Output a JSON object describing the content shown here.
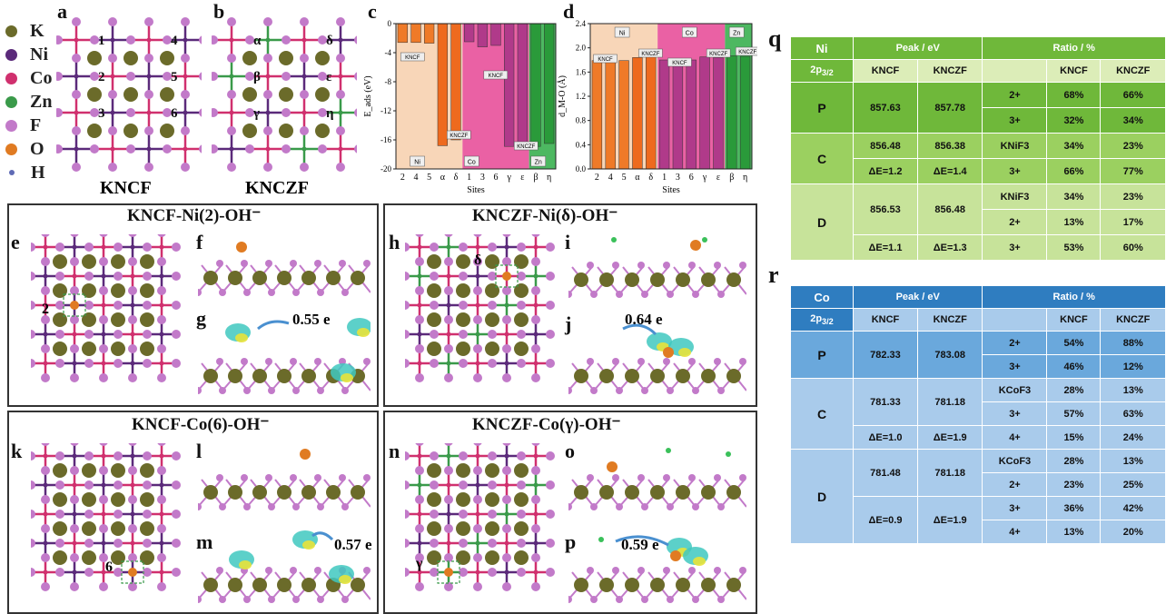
{
  "legend": [
    {
      "label": "K",
      "color": "#6b6b2a"
    },
    {
      "label": "Ni",
      "color": "#5b2a7a"
    },
    {
      "label": "Co",
      "color": "#d0306e"
    },
    {
      "label": "Zn",
      "color": "#3a9a4a"
    },
    {
      "label": "F",
      "color": "#c27ac9"
    },
    {
      "label": "O",
      "color": "#e07b22"
    },
    {
      "label": "H",
      "color": "#5f6bb5"
    }
  ],
  "panel_a": {
    "letter": "a",
    "name": "KNCF",
    "sites": [
      "1",
      "2",
      "3",
      "4",
      "5",
      "6"
    ]
  },
  "panel_b": {
    "letter": "b",
    "name": "KNCZF",
    "sites": [
      "α",
      "β",
      "γ",
      "δ",
      "ε",
      "η"
    ]
  },
  "panel_c": {
    "letter": "c",
    "chart_data": {
      "type": "bar",
      "ylabel": "E_ads (eV)",
      "xlabel": "Sites",
      "ylim": [
        -20,
        0
      ],
      "yticks": [
        "0",
        "-4",
        "-8",
        "-12",
        "-16",
        "-20"
      ],
      "categories": [
        "2",
        "4",
        "5",
        "α",
        "δ",
        "1",
        "3",
        "6",
        "γ",
        "ε",
        "β",
        "η"
      ],
      "values": [
        -2.6,
        -2.6,
        -2.7,
        -16.8,
        -16.0,
        -2.5,
        -3.2,
        -3.0,
        -16.9,
        -16.6,
        -16.9,
        -16.5
      ],
      "region_labels": [
        "Ni",
        "Co",
        "Zn"
      ],
      "tags": [
        "KNCF",
        "KNCZF",
        "KNCF",
        "KNCZF"
      ]
    }
  },
  "panel_d": {
    "letter": "d",
    "chart_data": {
      "type": "bar",
      "ylabel": "d_M-O (Å)",
      "xlabel": "Sites",
      "ylim": [
        0,
        2.4
      ],
      "yticks": [
        "2.4",
        "2.0",
        "1.6",
        "1.2",
        "0.8",
        "0.4",
        "0.0"
      ],
      "categories": [
        "2",
        "4",
        "5",
        "α",
        "δ",
        "1",
        "3",
        "6",
        "γ",
        "ε",
        "β",
        "η"
      ],
      "values": [
        1.79,
        1.79,
        1.79,
        1.84,
        1.88,
        1.8,
        1.8,
        1.8,
        1.85,
        1.84,
        1.87,
        1.86
      ],
      "region_labels": [
        "Ni",
        "Co",
        "Zn"
      ],
      "tags": [
        "KNCF",
        "KNCZF",
        "KNCF",
        "KNCZF",
        "KNCZF"
      ]
    }
  },
  "titles": {
    "e": "KNCF-Ni(2)-OH⁻",
    "h": "KNCZF-Ni(δ)-OH⁻",
    "k": "KNCF-Co(6)-OH⁻",
    "n": "KNCZF-Co(γ)-OH⁻"
  },
  "letters": {
    "e": "e",
    "f": "f",
    "g": "g",
    "h": "h",
    "i": "i",
    "j": "j",
    "k": "k",
    "l": "l",
    "m": "m",
    "n": "n",
    "o": "o",
    "p": "p",
    "q": "q",
    "r": "r"
  },
  "site_marks": {
    "e": "2",
    "h": "δ",
    "k": "6",
    "n": "γ"
  },
  "charge": {
    "g": "0.55 e",
    "j": "0.64 e",
    "m": "0.57 e",
    "p": "0.59 e"
  },
  "table_q": {
    "element": "Ni",
    "orbital": "2p3/2",
    "peak_header": "Peak / eV",
    "ratio_header": "Ratio / %",
    "sub": [
      "KNCF",
      "KNCZF",
      "KNCF",
      "KNCZF"
    ],
    "rows": [
      {
        "g": "P",
        "k1": "857.63",
        "k2": "857.78",
        "state": "2+",
        "r1": "68%",
        "r2": "66%"
      },
      {
        "g": "",
        "k1": "",
        "k2": "",
        "state": "3+",
        "r1": "32%",
        "r2": "34%"
      },
      {
        "g": "C",
        "k1": "856.48",
        "k2": "856.38",
        "state": "KNiF3",
        "r1": "34%",
        "r2": "23%"
      },
      {
        "g": "",
        "k1": "ΔE=1.2",
        "k2": "ΔE=1.4",
        "state": "3+",
        "r1": "66%",
        "r2": "77%"
      },
      {
        "g": "D",
        "k1": "856.53",
        "k2": "856.48",
        "state": "KNiF3",
        "r1": "34%",
        "r2": "23%"
      },
      {
        "g": "",
        "k1": "",
        "k2": "",
        "state": "2+",
        "r1": "13%",
        "r2": "17%"
      },
      {
        "g": "",
        "k1": "ΔE=1.1",
        "k2": "ΔE=1.3",
        "state": "3+",
        "r1": "53%",
        "r2": "60%"
      }
    ]
  },
  "table_r": {
    "element": "Co",
    "orbital": "2p3/2",
    "peak_header": "Peak / eV",
    "ratio_header": "Ratio / %",
    "sub": [
      "KNCF",
      "KNCZF",
      "KNCF",
      "KNCZF"
    ],
    "rows": [
      {
        "state": "2+",
        "r1": "54%",
        "r2": "88%"
      },
      {
        "state": "3+",
        "r1": "46%",
        "r2": "12%"
      },
      {
        "state": "KCoF3",
        "r1": "28%",
        "r2": "13%"
      },
      {
        "state": "3+",
        "r1": "57%",
        "r2": "63%"
      },
      {
        "state": "4+",
        "r1": "15%",
        "r2": "24%"
      },
      {
        "state": "KCoF3",
        "r1": "28%",
        "r2": "13%"
      },
      {
        "state": "2+",
        "r1": "23%",
        "r2": "25%"
      },
      {
        "state": "3+",
        "r1": "36%",
        "r2": "42%"
      },
      {
        "state": "4+",
        "r1": "13%",
        "r2": "20%"
      }
    ],
    "groups": [
      "P",
      "C",
      "D"
    ],
    "peaks": [
      {
        "k1": "782.33",
        "k2": "783.08"
      },
      {
        "k1": "781.33",
        "k2": "781.18"
      },
      {
        "k1": "ΔE=1.0",
        "k2": "ΔE=1.9"
      },
      {
        "k1": "781.48",
        "k2": "781.18"
      },
      {
        "k1": "ΔE=0.9",
        "k2": "ΔE=1.9"
      }
    ]
  }
}
